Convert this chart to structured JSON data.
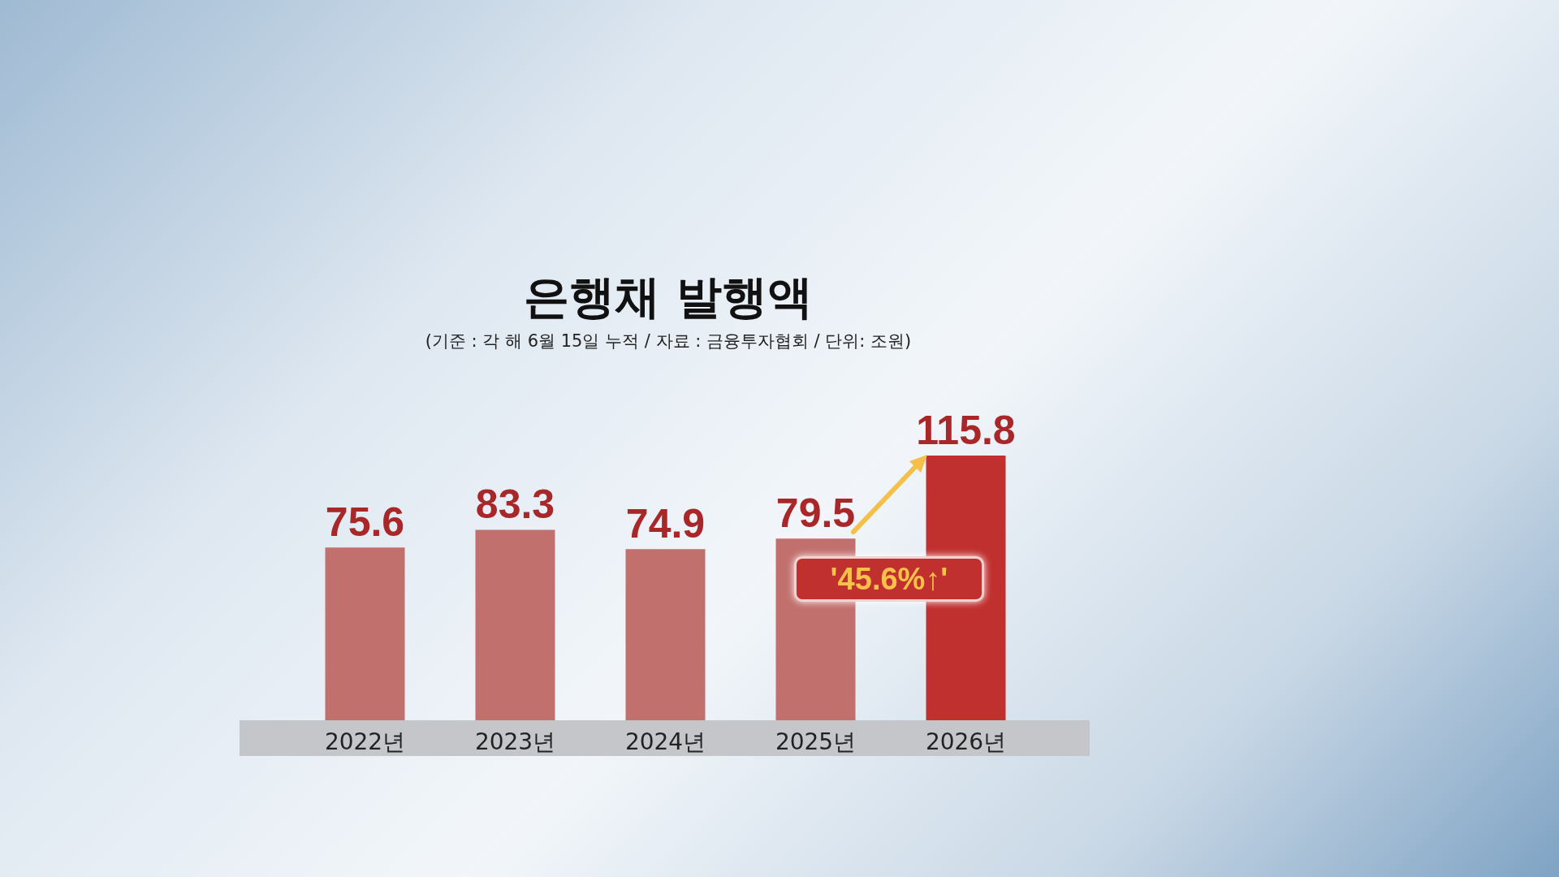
{
  "chart_data": {
    "type": "bar",
    "title": "은행채 발행액",
    "subtitle": "(기준 : 각 해 6월 15일 누적 / 자료 : 금융투자협회 / 단위: 조원)",
    "categories": [
      "2022년",
      "2023년",
      "2024년",
      "2025년",
      "2026년"
    ],
    "values": [
      75.6,
      83.3,
      74.9,
      79.5,
      115.8
    ],
    "colors": [
      "#c2706e",
      "#c2706e",
      "#c2706e",
      "#c2706e",
      "#c0302f"
    ],
    "data_labels": true,
    "annotations": [
      "'45.6%↑'"
    ]
  }
}
